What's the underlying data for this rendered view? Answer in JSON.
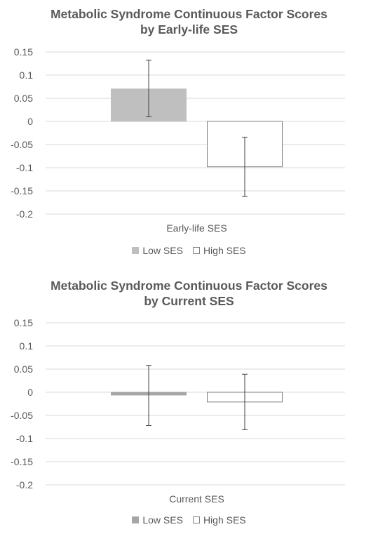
{
  "chart_data": [
    {
      "type": "bar",
      "title_lines": [
        "Metabolic Syndrome Continuous Factor Scores",
        "by Early-life SES"
      ],
      "categories": [
        "Early-life SES"
      ],
      "xlabel": "Early-life SES",
      "ylim": [
        -0.2,
        0.15
      ],
      "yticks": [
        0.15,
        0.1,
        0.05,
        0,
        -0.05,
        -0.1,
        -0.15,
        -0.2
      ],
      "ytick_labels": [
        "0.15",
        "0.1",
        "0.05",
        "0",
        "-0.05",
        "-0.1",
        "-0.15",
        "-0.2"
      ],
      "grid": true,
      "legend_position": "bottom",
      "series": [
        {
          "name": "Low SES",
          "values": [
            0.07
          ],
          "error_low": [
            0.01
          ],
          "error_high": [
            0.132
          ],
          "fill": "#bfbfbf",
          "stroke": "#bfbfbf"
        },
        {
          "name": "High SES",
          "values": [
            -0.098
          ],
          "error_low": [
            -0.162
          ],
          "error_high": [
            -0.034
          ],
          "fill": "#ffffff",
          "stroke": "#808080"
        }
      ]
    },
    {
      "type": "bar",
      "title_lines": [
        "Metabolic Syndrome Continuous Factor Scores",
        "by Current SES"
      ],
      "categories": [
        "Current SES"
      ],
      "xlabel": "Current SES",
      "ylim": [
        -0.2,
        0.15
      ],
      "yticks": [
        0.15,
        0.1,
        0.05,
        0,
        -0.05,
        -0.1,
        -0.15,
        -0.2
      ],
      "ytick_labels": [
        "0.15",
        "0.1",
        "0.05",
        "0",
        "-0.05",
        "-0.1",
        "-0.15",
        "-0.2"
      ],
      "grid": true,
      "legend_position": "bottom",
      "series": [
        {
          "name": "Low SES",
          "values": [
            -0.006
          ],
          "error_low": [
            -0.072
          ],
          "error_high": [
            0.058
          ],
          "fill": "#a6a6a6",
          "stroke": "#a6a6a6"
        },
        {
          "name": "High SES",
          "values": [
            -0.021
          ],
          "error_low": [
            -0.081
          ],
          "error_high": [
            0.039
          ],
          "fill": "#ffffff",
          "stroke": "#808080"
        }
      ]
    }
  ],
  "colors": {
    "text": "#595959",
    "gridline": "#d9d9d9",
    "error_bar": "#404040"
  }
}
